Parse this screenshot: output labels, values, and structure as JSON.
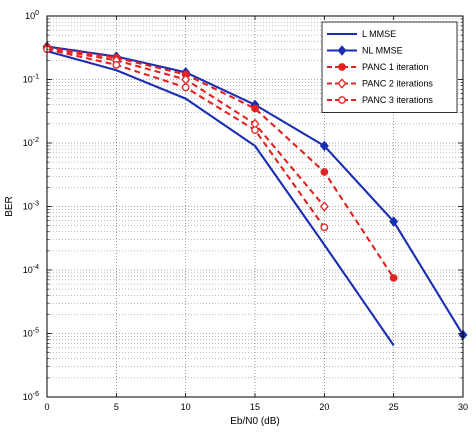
{
  "chart_data": {
    "type": "line",
    "xlabel": "Eb/N0 (dB)",
    "ylabel": "BER",
    "xlim": [
      0,
      30
    ],
    "ylim": [
      1e-06,
      1
    ],
    "y_scale": "log",
    "x_ticks": [
      0,
      5,
      10,
      15,
      20,
      25,
      30
    ],
    "x_tick_labels": [
      "0",
      "5",
      "10",
      "15",
      "20",
      "25",
      "30"
    ],
    "y_ticks": [
      1e-06,
      1e-05,
      0.0001,
      0.001,
      0.01,
      0.1,
      1
    ],
    "y_tick_bases": [
      "10",
      "10",
      "10",
      "10",
      "10",
      "10",
      "10"
    ],
    "y_tick_exponents": [
      "-6",
      "-5",
      "-4",
      "-3",
      "-2",
      "-1",
      "0"
    ],
    "grid": true,
    "grid_style": "dotted",
    "legend_position": "top-right",
    "series": [
      {
        "name": "L MMSE",
        "color": "#1a2eb3",
        "line_style": "solid",
        "marker": "none",
        "x": [
          0,
          5,
          10,
          15,
          20,
          25
        ],
        "y": [
          0.28,
          0.14,
          0.05,
          0.009,
          0.00025,
          6.5e-06
        ]
      },
      {
        "name": "NL MMSE",
        "color": "#1a2eb3",
        "line_style": "solid",
        "marker": "diamond-filled",
        "x": [
          0,
          5,
          10,
          15,
          20,
          25,
          30
        ],
        "y": [
          0.33,
          0.23,
          0.13,
          0.04,
          0.009,
          0.00058,
          9.5e-06
        ]
      },
      {
        "name": "PANC 1 iteration",
        "color": "#e32222",
        "line_style": "dashed",
        "marker": "circle-filled",
        "x": [
          0,
          5,
          10,
          15,
          20,
          25
        ],
        "y": [
          0.32,
          0.22,
          0.12,
          0.035,
          0.0035,
          7.5e-05
        ]
      },
      {
        "name": "PANC 2 iterations",
        "color": "#e32222",
        "line_style": "dashed",
        "marker": "diamond-open",
        "x": [
          0,
          5,
          10,
          15,
          20
        ],
        "y": [
          0.31,
          0.2,
          0.1,
          0.02,
          0.001
        ]
      },
      {
        "name": "PANC 3 iterations",
        "color": "#e32222",
        "line_style": "dashed",
        "marker": "circle-open",
        "x": [
          0,
          5,
          10,
          15,
          20
        ],
        "y": [
          0.3,
          0.17,
          0.075,
          0.016,
          0.00047
        ]
      }
    ]
  }
}
